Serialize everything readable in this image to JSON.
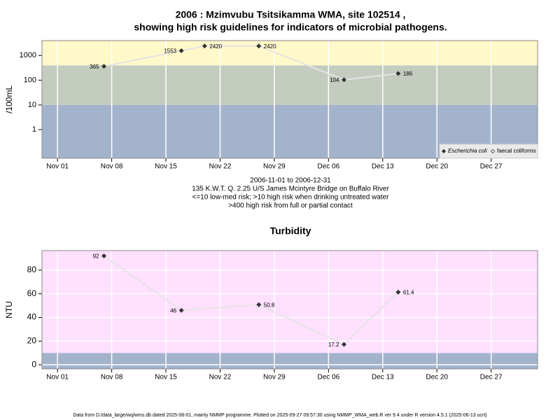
{
  "footer": "Data from D:/data_large/wq/wms.db dated 2025-08-01, mainly NMMP programme. Plotted on 2025-09-27 09:57:30 using NMMP_WMA_web.R ver 9.4 under R version 4.5.1 (2025-06-13 ucrt)",
  "chart_data": [
    {
      "type": "line",
      "title": [
        "2006 : Mzimvubu Tsitsikamma WMA, site 102514 ,",
        "showing high risk guidelines for indicators of microbial pathogens."
      ],
      "subtitle": [
        "2006-11-01 to 2006-12-31",
        "135 K.W.T. Q. 2.25 U/S James Mcintyre Bridge on Buffalo River",
        "<=10 low-med risk; >10 high risk when drinking untreated water",
        ">400 high risk from full or partial contact"
      ],
      "ylabel": "/100mL",
      "log_y": true,
      "x": [
        "Nov 07",
        "Nov 17",
        "Nov 20",
        "Nov 27",
        "Dec 08",
        "Dec 15"
      ],
      "series": [
        {
          "name": "Escherichia coli",
          "color": "#333333",
          "values": [
            365,
            1553,
            2420,
            2420,
            104,
            186
          ]
        },
        {
          "name": "faecal coliforms",
          "color": "#333333",
          "values": [
            null,
            null,
            null,
            null,
            null,
            null
          ]
        }
      ],
      "xlim": [
        "Oct 30",
        "Jan 02"
      ],
      "xticks": [
        "Nov 01",
        "Nov 08",
        "Nov 15",
        "Nov 22",
        "Nov 29",
        "Dec 06",
        "Dec 13",
        "Dec 20",
        "Dec 27"
      ],
      "ylim": [
        0.07,
        4000
      ],
      "yticks": [
        1,
        10,
        100,
        1000
      ],
      "bands": [
        {
          "from": 0.07,
          "to": 10,
          "color": "#a3b3cc"
        },
        {
          "from": 10,
          "to": 400,
          "color": "#c4ccc0"
        },
        {
          "from": 400,
          "to": 4000,
          "color": "#fff8c8"
        }
      ],
      "grid": true,
      "legend": "bottom-right"
    },
    {
      "type": "line",
      "title": [
        "Turbidity"
      ],
      "ylabel": "NTU",
      "log_y": false,
      "x": [
        "Nov 07",
        "Nov 17",
        "Nov 27",
        "Dec 08",
        "Dec 15"
      ],
      "series": [
        {
          "color": "#333333",
          "values": [
            92,
            46,
            50.8,
            17.2,
            61.4
          ]
        }
      ],
      "xlim": [
        "Oct 30",
        "Jan 02"
      ],
      "xticks": [
        "Nov 01",
        "Nov 08",
        "Nov 15",
        "Nov 22",
        "Nov 29",
        "Dec 06",
        "Dec 13",
        "Dec 20",
        "Dec 27"
      ],
      "ylim": [
        -3.5,
        96.5
      ],
      "yticks": [
        0,
        20,
        40,
        60,
        80
      ],
      "bands": [
        {
          "from": -3.5,
          "to": 10,
          "color": "#a3b3cc"
        },
        {
          "from": 10,
          "to": 96.5,
          "color": "#ffe0ff"
        }
      ],
      "grid": true
    }
  ]
}
